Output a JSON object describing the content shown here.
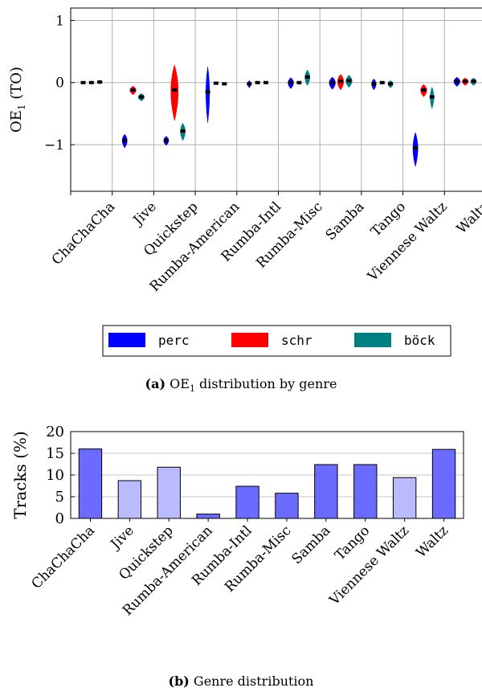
{
  "chart_data": [
    {
      "type": "violin",
      "caption_label": "(a)",
      "caption_text": "distribution by genre",
      "caption_prefix": "OE",
      "caption_sub": "1",
      "ylabel": "OE",
      "ylabel_sub": "1",
      "ylabel_suffix": " (TO)",
      "ylim": [
        -1.75,
        1.2
      ],
      "yticks": [
        -1,
        0,
        1
      ],
      "ytick_labels": [
        "−1",
        "0",
        "1"
      ],
      "grid": true,
      "legend_position": "bottom",
      "categories": [
        "ChaChaCha",
        "Jive",
        "Quickstep",
        "Rumba-American",
        "Rumba-Intl",
        "Rumba-Misc",
        "Samba",
        "Tango",
        "Viennese Waltz",
        "Waltz"
      ],
      "series": [
        {
          "name": "perc",
          "color": "#0000ff",
          "medians": [
            0.0,
            -0.93,
            -0.93,
            -0.15,
            -0.02,
            0.0,
            0.0,
            -0.02,
            -1.05,
            0.02
          ]
        },
        {
          "name": "schr",
          "color": "#ff0000",
          "medians": [
            0.0,
            -0.12,
            -0.12,
            -0.01,
            0.0,
            0.0,
            0.02,
            0.0,
            -0.12,
            0.02
          ]
        },
        {
          "name": "böck",
          "color": "#008080",
          "medians": [
            0.01,
            -0.23,
            -0.78,
            -0.02,
            0.0,
            0.09,
            0.03,
            -0.02,
            -0.23,
            0.02
          ]
        }
      ]
    },
    {
      "type": "bar",
      "caption_label": "(b)",
      "caption_text": "Genre distribution",
      "ylabel": "Tracks (%)",
      "ylim": [
        0,
        20
      ],
      "yticks": [
        0,
        5,
        10,
        15,
        20
      ],
      "ytick_labels": [
        "0",
        "5",
        "10",
        "15",
        "20"
      ],
      "categories": [
        "ChaChaCha",
        "Jive",
        "Quickstep",
        "Rumba-American",
        "Rumba-Intl",
        "Rumba-Misc",
        "Samba",
        "Tango",
        "Viennese Waltz",
        "Waltz"
      ],
      "values": [
        16.0,
        8.7,
        11.8,
        1.0,
        7.4,
        5.8,
        12.4,
        12.4,
        9.4,
        15.9
      ],
      "highlight": [
        true,
        false,
        false,
        true,
        true,
        true,
        true,
        true,
        false,
        true
      ],
      "colors": {
        "dark": "#6b6bff",
        "light": "#babaff"
      }
    }
  ]
}
